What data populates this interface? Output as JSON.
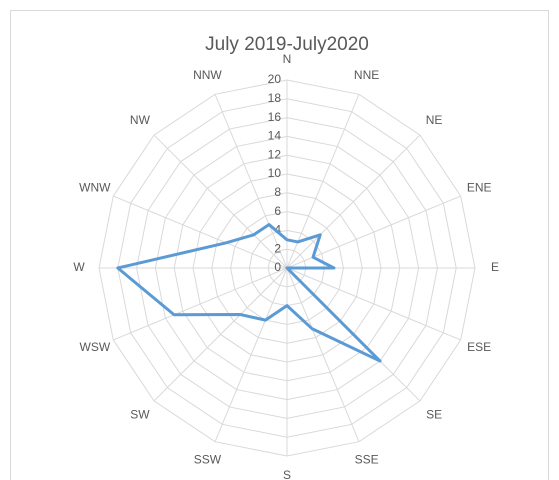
{
  "chart_data": {
    "type": "radar",
    "title": "July 2019-July2020",
    "categories": [
      "N",
      "NNE",
      "NE",
      "ENE",
      "E",
      "ESE",
      "SE",
      "SSE",
      "S",
      "SSW",
      "SW",
      "WSW",
      "W",
      "WNW",
      "NW",
      "NNW"
    ],
    "values": [
      3,
      3,
      5,
      3,
      5,
      0,
      14,
      7,
      4,
      6,
      7,
      13,
      18,
      7,
      5,
      5
    ],
    "color": "#5b9bd5",
    "rlim": [
      0,
      20
    ],
    "rticks": [
      0,
      2,
      4,
      6,
      8,
      10,
      12,
      14,
      16,
      18,
      20
    ],
    "grid": true
  }
}
